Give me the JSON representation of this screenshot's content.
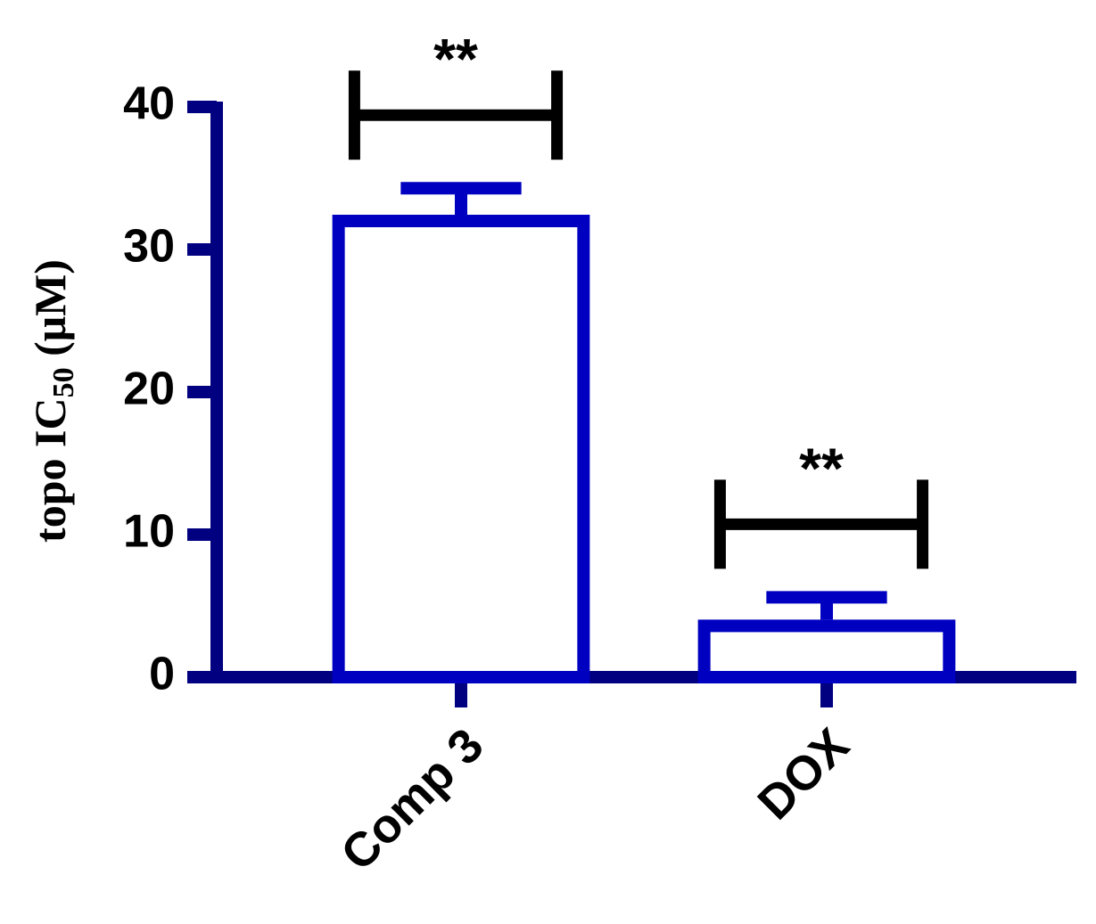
{
  "chart_data": {
    "type": "bar",
    "y_label": [
      "topo IC",
      "50",
      " (μM)"
    ],
    "categories": [
      "Comp 3",
      "DOX"
    ],
    "values": [
      32,
      3.6
    ],
    "errors": [
      2.3,
      2.0
    ],
    "annotations": [
      "**",
      "**"
    ],
    "color": "#0000c0",
    "axis_color": "#000080",
    "ylim": [
      0,
      40
    ],
    "yticks": [
      0,
      10,
      20,
      30,
      40
    ]
  }
}
